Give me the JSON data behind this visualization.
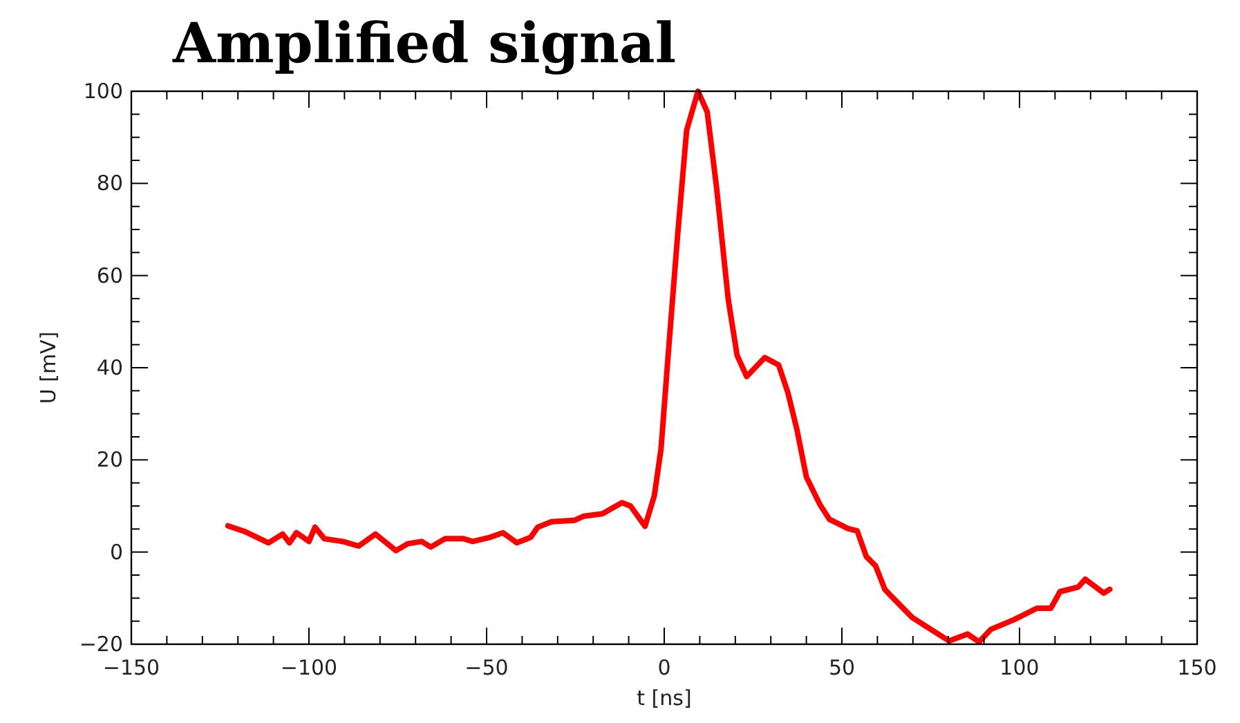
{
  "chart_data": {
    "type": "line",
    "title": "Amplified signal",
    "xlabel": "t [ns]",
    "ylabel": "U [mV]",
    "xlim": [
      -150,
      150
    ],
    "ylim": [
      -20,
      100
    ],
    "xticks": [
      {
        "value": -150,
        "label": "−150"
      },
      {
        "value": -140,
        "label": null
      },
      {
        "value": -130,
        "label": null
      },
      {
        "value": -120,
        "label": null
      },
      {
        "value": -110,
        "label": null
      },
      {
        "value": -100,
        "label": "−100"
      },
      {
        "value": -90,
        "label": null
      },
      {
        "value": -80,
        "label": null
      },
      {
        "value": -70,
        "label": null
      },
      {
        "value": -60,
        "label": null
      },
      {
        "value": -50,
        "label": "−50"
      },
      {
        "value": -40,
        "label": null
      },
      {
        "value": -30,
        "label": null
      },
      {
        "value": -20,
        "label": null
      },
      {
        "value": -10,
        "label": null
      },
      0,
      {
        "value": 10,
        "label": null
      },
      {
        "value": 20,
        "label": null
      },
      {
        "value": 30,
        "label": null
      },
      {
        "value": 40,
        "label": null
      },
      50,
      {
        "value": 60,
        "label": null
      },
      {
        "value": 70,
        "label": null
      },
      {
        "value": 80,
        "label": null
      },
      {
        "value": 90,
        "label": null
      },
      100,
      {
        "value": 110,
        "label": null
      },
      {
        "value": 120,
        "label": null
      },
      {
        "value": 130,
        "label": null
      },
      {
        "value": 140,
        "label": null
      },
      150
    ],
    "yticks": [
      {
        "value": -20,
        "label": "−20"
      },
      {
        "value": -15,
        "label": null
      },
      {
        "value": -10,
        "label": null
      },
      {
        "value": -5,
        "label": null
      },
      0,
      {
        "value": 5,
        "label": null
      },
      {
        "value": 10,
        "label": null
      },
      {
        "value": 15,
        "label": null
      },
      20,
      {
        "value": 25,
        "label": null
      },
      {
        "value": 30,
        "label": null
      },
      {
        "value": 35,
        "label": null
      },
      40,
      {
        "value": 45,
        "label": null
      },
      {
        "value": 50,
        "label": null
      },
      {
        "value": 55,
        "label": null
      },
      60,
      {
        "value": 65,
        "label": null
      },
      {
        "value": 70,
        "label": null
      },
      {
        "value": 75,
        "label": null
      },
      80,
      {
        "value": 85,
        "label": null
      },
      {
        "value": 90,
        "label": null
      },
      {
        "value": 95,
        "label": null
      },
      100
    ],
    "grid": false,
    "marker": "none",
    "line_style": "solid",
    "series": [
      {
        "color": "#ff0000",
        "x": [
          -122.8,
          -117.9,
          -111.4,
          -107.4,
          -105.5,
          -103.5,
          -100,
          -98.3,
          -95.7,
          -90.5,
          -86,
          -81.3,
          -78.7,
          -75.5,
          -72.2,
          -68.3,
          -65.7,
          -61.7,
          -56.5,
          -53.9,
          -49,
          -45.4,
          -41.5,
          -37.6,
          -35.6,
          -31.7,
          -25.2,
          -22.6,
          -17.4,
          -11.9,
          -9.5,
          -5.4,
          -2.8,
          -0.9,
          1.1,
          3.7,
          6.3,
          9.5,
          12.1,
          14.7,
          18,
          20.5,
          23.2,
          28.3,
          32.2,
          34.8,
          37.4,
          40,
          43.9,
          46.5,
          47.8,
          51.7,
          54.3,
          56.9,
          59.5,
          62.1,
          63.3,
          69.8,
          80.2,
          85.4,
          88.6,
          91.9,
          98.4,
          104.9,
          108.8,
          111.4,
          116.5,
          118.5,
          123.7,
          125.4
        ],
        "values": [
          5.7,
          4.4,
          2,
          3.9,
          2,
          4.2,
          2.3,
          5.4,
          2.9,
          2.3,
          1.3,
          3.9,
          2.3,
          0.3,
          1.8,
          2.3,
          1.1,
          2.9,
          2.9,
          2.3,
          3.2,
          4.2,
          2,
          3.2,
          5.4,
          6.6,
          6.9,
          7.8,
          8.3,
          10.7,
          10,
          5.6,
          12.2,
          22.4,
          42.7,
          68.1,
          91.5,
          100,
          95.5,
          79.3,
          54.9,
          42.7,
          38.1,
          42.2,
          40.6,
          34.6,
          26.4,
          16.3,
          10.2,
          7.1,
          6.6,
          5.1,
          4.6,
          -1,
          -3,
          -8.1,
          -9.1,
          -14.2,
          -19.3,
          -17.8,
          -19.5,
          -16.8,
          -14.7,
          -12.2,
          -12.2,
          -8.6,
          -7.6,
          -5.9,
          -8.9,
          -8.1
        ]
      }
    ]
  }
}
